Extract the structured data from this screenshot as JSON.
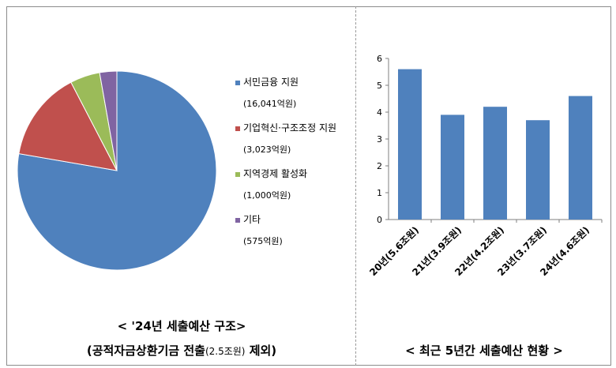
{
  "chart_data": [
    {
      "type": "pie",
      "title": "< '24년 세출예산 구조>",
      "subtitle_before": "(공적자금상환기금 전출",
      "subtitle_paren": "(2.5조원)",
      "subtitle_after": " 제외)",
      "slices": [
        {
          "name": "서민금융 지원",
          "value": 16041,
          "value_label": "(16,041억원)",
          "color": "#4f81bd"
        },
        {
          "name": "기업혁신·구조조정 지원",
          "value": 3023,
          "value_label": "(3,023억원)",
          "color": "#c0504d"
        },
        {
          "name": "지역경제 활성화",
          "value": 1000,
          "value_label": "(1,000억원)",
          "color": "#9bbb59"
        },
        {
          "name": "기타",
          "value": 575,
          "value_label": "(575억원)",
          "color": "#8064a2"
        }
      ],
      "legend_position": "right"
    },
    {
      "type": "bar",
      "title": "< 최근 5년간 세출예산 현황 >",
      "categories": [
        "20년(5.6조원)",
        "21년(3.9조원)",
        "22년(4.2조원)",
        "23년(3.7조원)",
        "24년(4.6조원)"
      ],
      "values": [
        5.6,
        3.9,
        4.2,
        3.7,
        4.6
      ],
      "ylim": [
        0,
        6
      ],
      "yticks": [
        "0",
        "1",
        "2",
        "3",
        "4",
        "5",
        "6"
      ],
      "color": "#4f81bd",
      "grid": false
    }
  ]
}
